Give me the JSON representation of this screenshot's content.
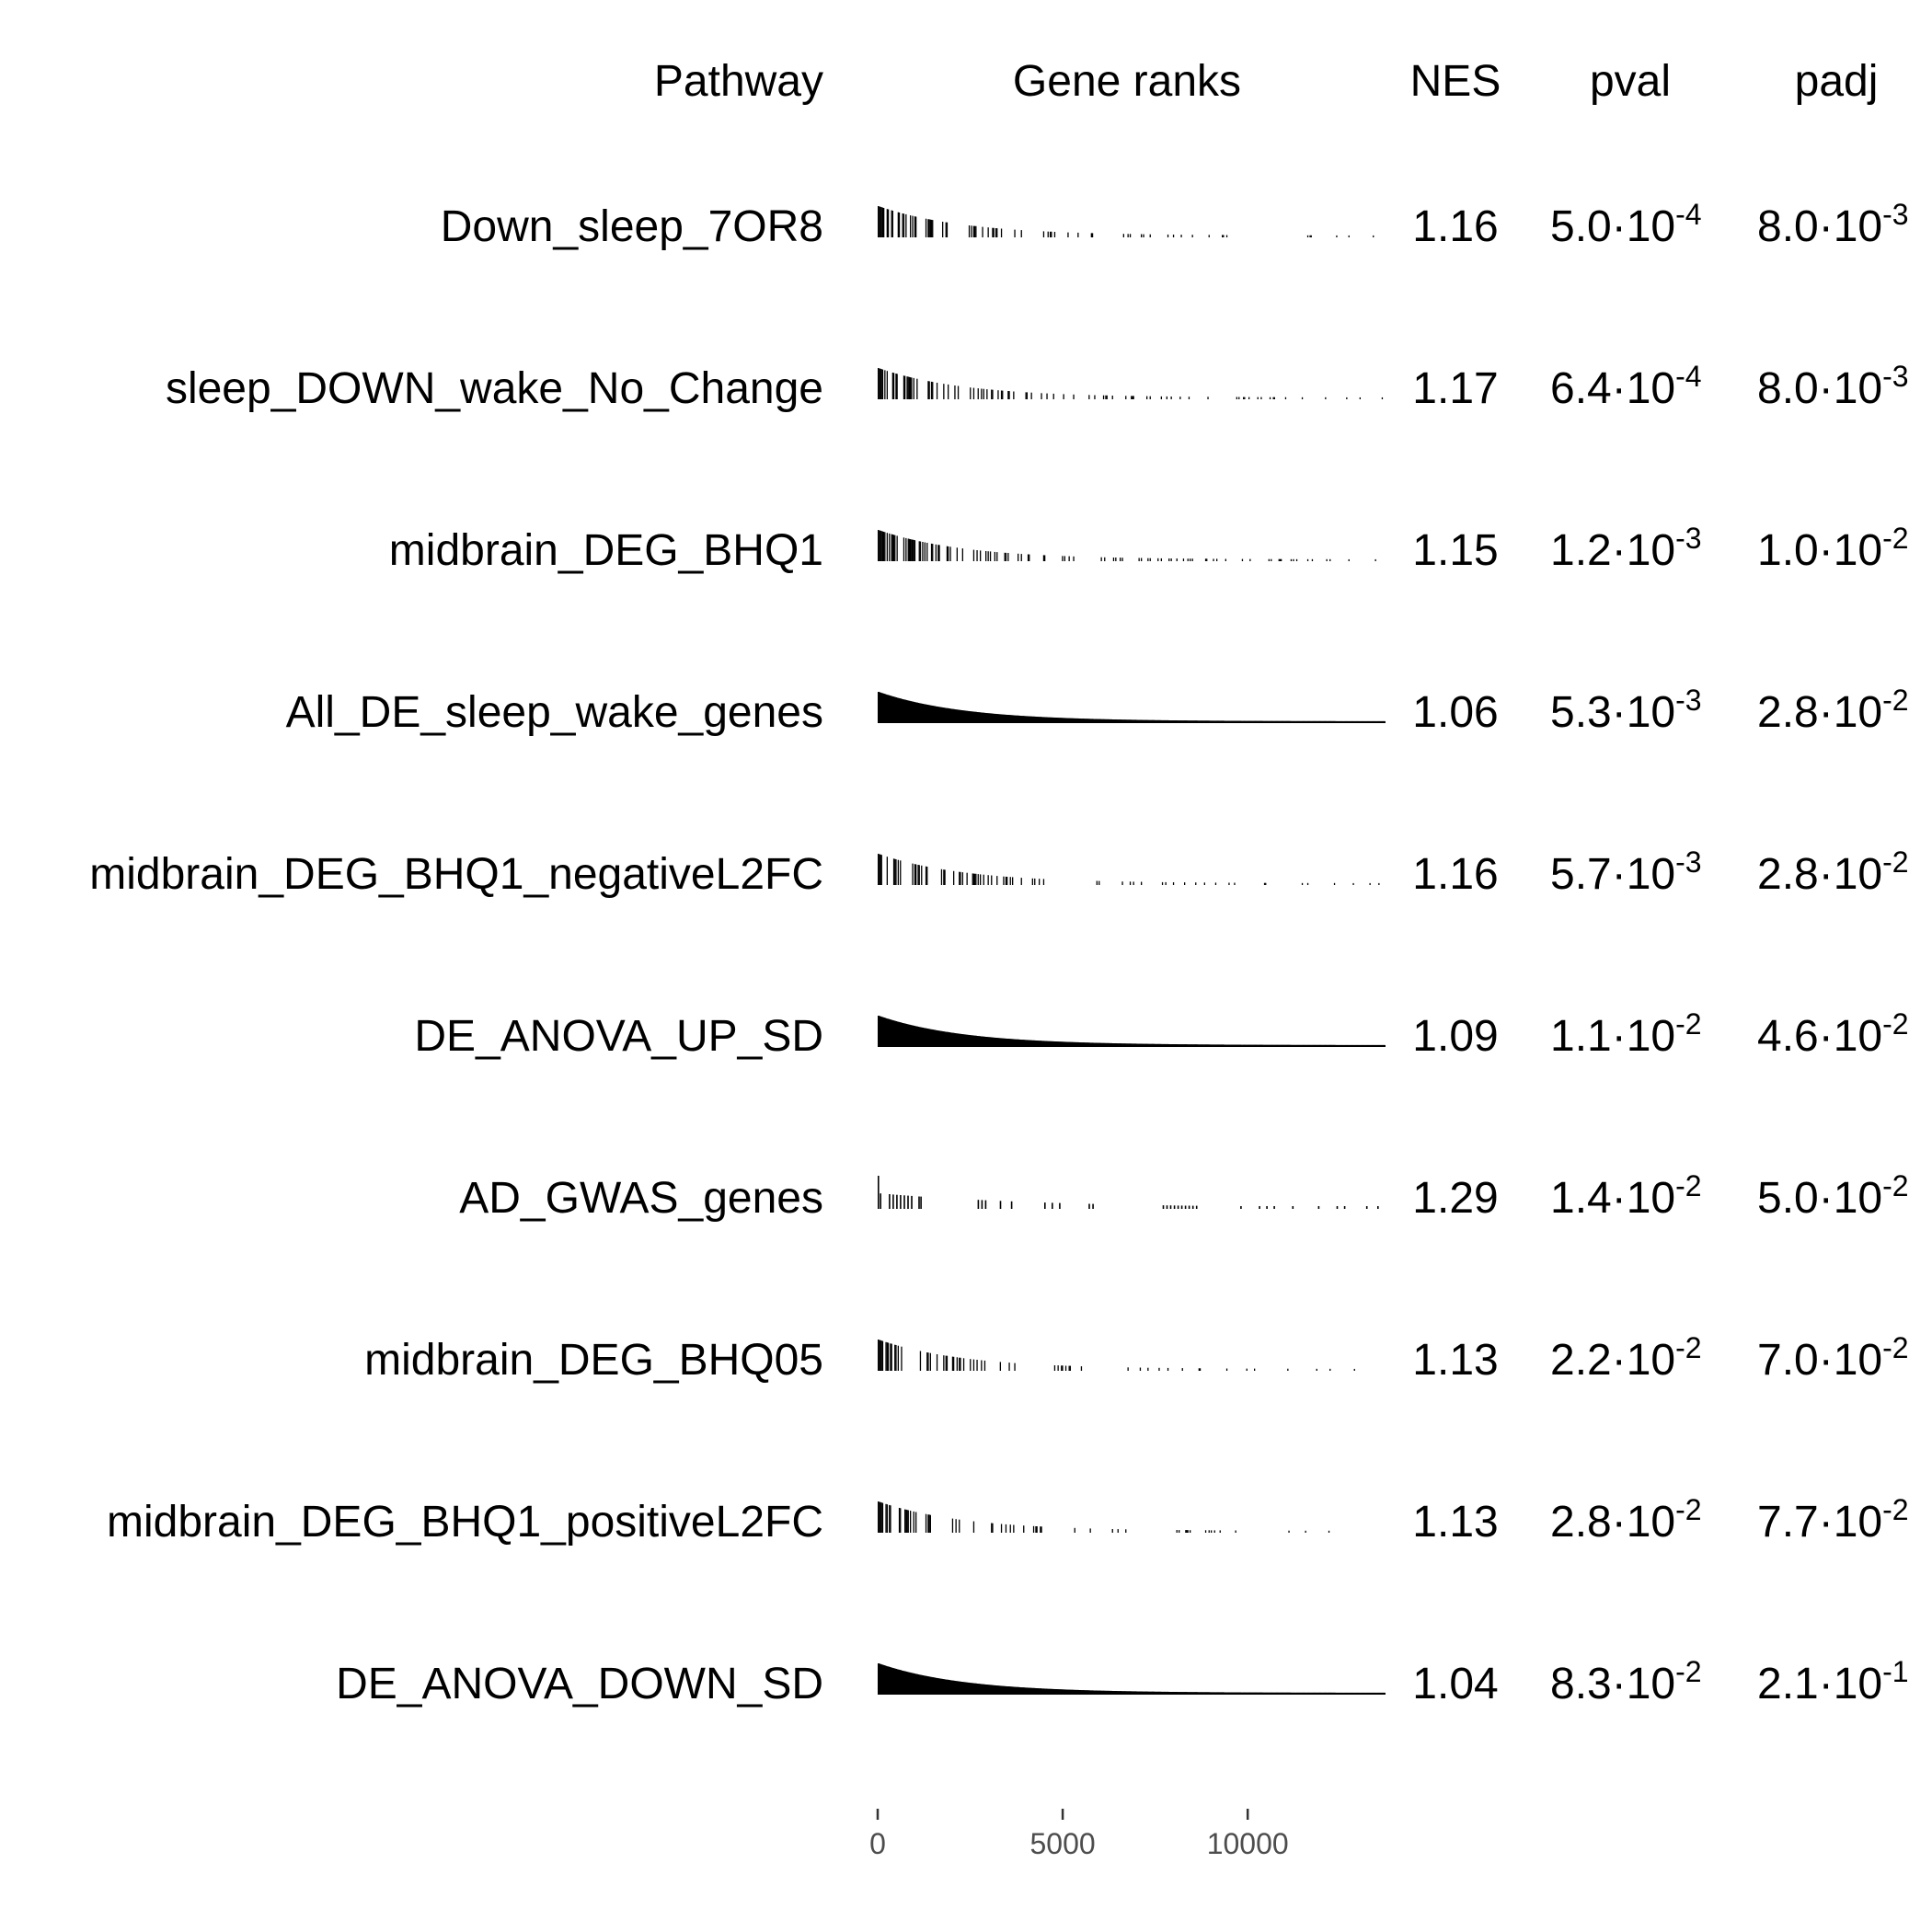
{
  "chart_data": {
    "type": "table",
    "headers": {
      "pathway": "Pathway",
      "gene_ranks": "Gene ranks",
      "nes": "NES",
      "pval": "pval",
      "padj": "padj"
    },
    "x_axis": {
      "range": [
        0,
        13700
      ],
      "ticks": [
        0,
        5000,
        10000
      ],
      "tick_labels": [
        "0",
        "5000",
        "10000"
      ]
    },
    "bar_color": "#000000",
    "rows": [
      {
        "pathway": "Down_sleep_7OR8",
        "nes": "1.16",
        "pval_mant": "5.0·10",
        "pval_exp": "-4",
        "padj_mant": "8.0·10",
        "padj_exp": "-3",
        "density": 0.45,
        "rank_pattern": "dense-decaying"
      },
      {
        "pathway": "sleep_DOWN_wake_No_Change",
        "nes": "1.17",
        "pval_mant": "6.4·10",
        "pval_exp": "-4",
        "padj_mant": "8.0·10",
        "padj_exp": "-3",
        "density": 0.45,
        "rank_pattern": "dense-decaying"
      },
      {
        "pathway": "midbrain_DEG_BHQ1",
        "nes": "1.15",
        "pval_mant": "1.2·10",
        "pval_exp": "-3",
        "padj_mant": "1.0·10",
        "padj_exp": "-2",
        "density": 0.6,
        "rank_pattern": "dense-decaying"
      },
      {
        "pathway": "All_DE_sleep_wake_genes",
        "nes": "1.06",
        "pval_mant": "5.3·10",
        "pval_exp": "-3",
        "padj_mant": "2.8·10",
        "padj_exp": "-2",
        "density": 1.0,
        "rank_pattern": "solid-decaying"
      },
      {
        "pathway": "midbrain_DEG_BHQ1_negativeL2FC",
        "nes": "1.16",
        "pval_mant": "5.7·10",
        "pval_exp": "-3",
        "padj_mant": "2.8·10",
        "padj_exp": "-2",
        "density": 0.35,
        "rank_pattern": "dense-decaying"
      },
      {
        "pathway": "DE_ANOVA_UP_SD",
        "nes": "1.09",
        "pval_mant": "1.1·10",
        "pval_exp": "-2",
        "padj_mant": "4.6·10",
        "padj_exp": "-2",
        "density": 0.9,
        "rank_pattern": "solid-decaying"
      },
      {
        "pathway": "AD_GWAS_genes",
        "nes": "1.29",
        "pval_mant": "1.4·10",
        "pval_exp": "-2",
        "padj_mant": "5.0·10",
        "padj_exp": "-2",
        "density": 0.08,
        "rank_pattern": "sparse"
      },
      {
        "pathway": "midbrain_DEG_BHQ05",
        "nes": "1.13",
        "pval_mant": "2.2·10",
        "pval_exp": "-2",
        "padj_mant": "7.0·10",
        "padj_exp": "-2",
        "density": 0.4,
        "rank_pattern": "dense-decaying"
      },
      {
        "pathway": "midbrain_DEG_BHQ1_positiveL2FC",
        "nes": "1.13",
        "pval_mant": "2.8·10",
        "pval_exp": "-2",
        "padj_mant": "7.7·10",
        "padj_exp": "-2",
        "density": 0.35,
        "rank_pattern": "dense-decaying"
      },
      {
        "pathway": "DE_ANOVA_DOWN_SD",
        "nes": "1.04",
        "pval_mant": "8.3·10",
        "pval_exp": "-2",
        "padj_mant": "2.1·10",
        "padj_exp": "-1",
        "density": 1.0,
        "rank_pattern": "solid-decaying"
      }
    ]
  }
}
